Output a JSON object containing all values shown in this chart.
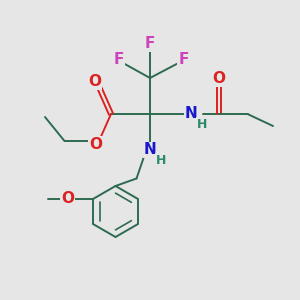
{
  "bg_color": "#e6e6e6",
  "bond_color": "#2d6b50",
  "bond_lw": 1.4,
  "atom_colors": {
    "F": "#cc44bb",
    "O": "#dd2020",
    "N": "#1818cc",
    "H": "#2a8a6a",
    "C": "#000000"
  },
  "font_size": 10.5,
  "fig_size": [
    3.0,
    3.0
  ],
  "dpi": 100
}
